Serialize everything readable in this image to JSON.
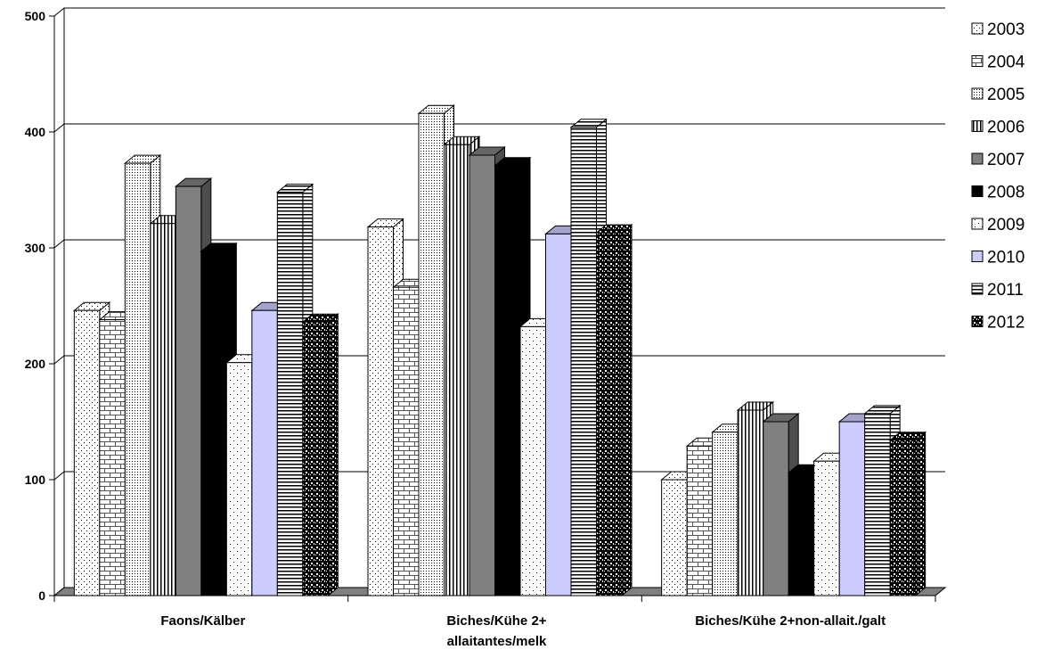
{
  "chart_data": {
    "type": "bar",
    "title": "",
    "xlabel": "",
    "ylabel": "",
    "ylim": [
      0,
      500
    ],
    "yticks": [
      0,
      100,
      200,
      300,
      400,
      500
    ],
    "grid": true,
    "legend_position": "right",
    "three_d": true,
    "categories": [
      [
        "Faons/Kälber"
      ],
      [
        "Biches/Kühe 2+",
        "allaitantes/melk"
      ],
      [
        "Biches/Kühe 2+non-allait./galt"
      ]
    ],
    "series": [
      {
        "name": "2003",
        "values": [
          246,
          318,
          100
        ],
        "pattern": "dots-sparse",
        "color": "#ffffff"
      },
      {
        "name": "2004",
        "values": [
          238,
          266,
          129
        ],
        "pattern": "bricks",
        "color": "#ffffff"
      },
      {
        "name": "2005",
        "values": [
          373,
          416,
          141
        ],
        "pattern": "dots-dense",
        "color": "#ffffff"
      },
      {
        "name": "2006",
        "values": [
          321,
          389,
          160
        ],
        "pattern": "vertical",
        "color": "#ffffff"
      },
      {
        "name": "2007",
        "values": [
          353,
          380,
          150
        ],
        "pattern": "solid",
        "color": "#808080"
      },
      {
        "name": "2008",
        "values": [
          297,
          371,
          106
        ],
        "pattern": "solid",
        "color": "#000000"
      },
      {
        "name": "2009",
        "values": [
          201,
          232,
          116
        ],
        "pattern": "dots-tiny",
        "color": "#ffffff"
      },
      {
        "name": "2010",
        "values": [
          246,
          312,
          150
        ],
        "pattern": "solid",
        "color": "#ccccff"
      },
      {
        "name": "2011",
        "values": [
          348,
          404,
          157
        ],
        "pattern": "horizontal",
        "color": "#ffffff"
      },
      {
        "name": "2012",
        "values": [
          236,
          313,
          134
        ],
        "pattern": "confetti",
        "color": "#ffffff"
      }
    ]
  }
}
